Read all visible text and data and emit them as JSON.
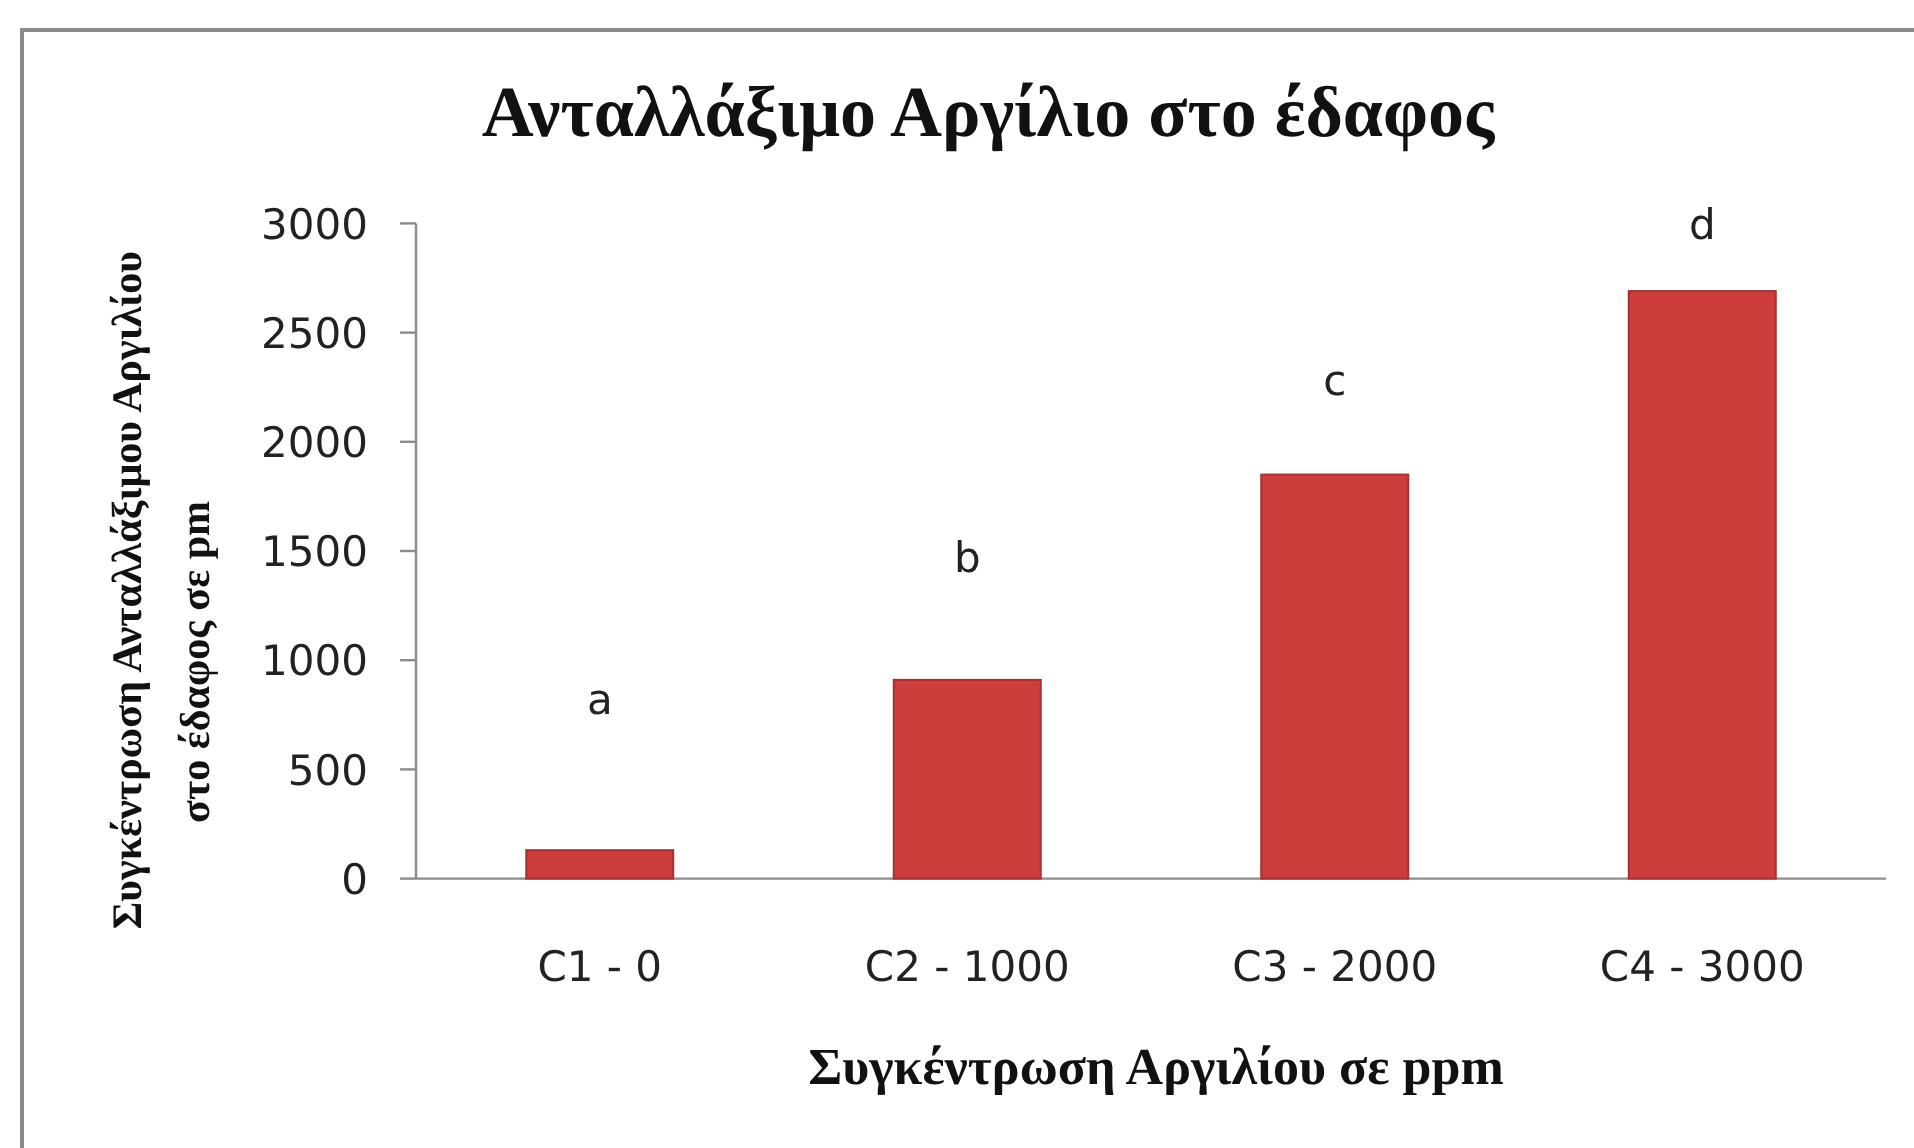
{
  "chart_data": {
    "type": "bar",
    "title": "Ανταλλάξιμο Αργίλιο στο έδαφος",
    "xlabel": "Συγκέντρωση Αργιλίου σε ppm",
    "ylabel": "Συγκέντρωση Ανταλλάξιμου Αργιλίου στο έδαφος σε pm",
    "categories": [
      "C1 - 0",
      "C2 - 1000",
      "C3 - 2000",
      "C4 - 3000"
    ],
    "values": [
      130,
      910,
      1850,
      2690
    ],
    "color": "#cc3d3b",
    "ylim": [
      0,
      3000
    ],
    "yticks": [
      0,
      500,
      1000,
      1500,
      2000,
      2500,
      3000
    ],
    "annotations": [
      "a",
      "b",
      "c",
      "d"
    ]
  }
}
